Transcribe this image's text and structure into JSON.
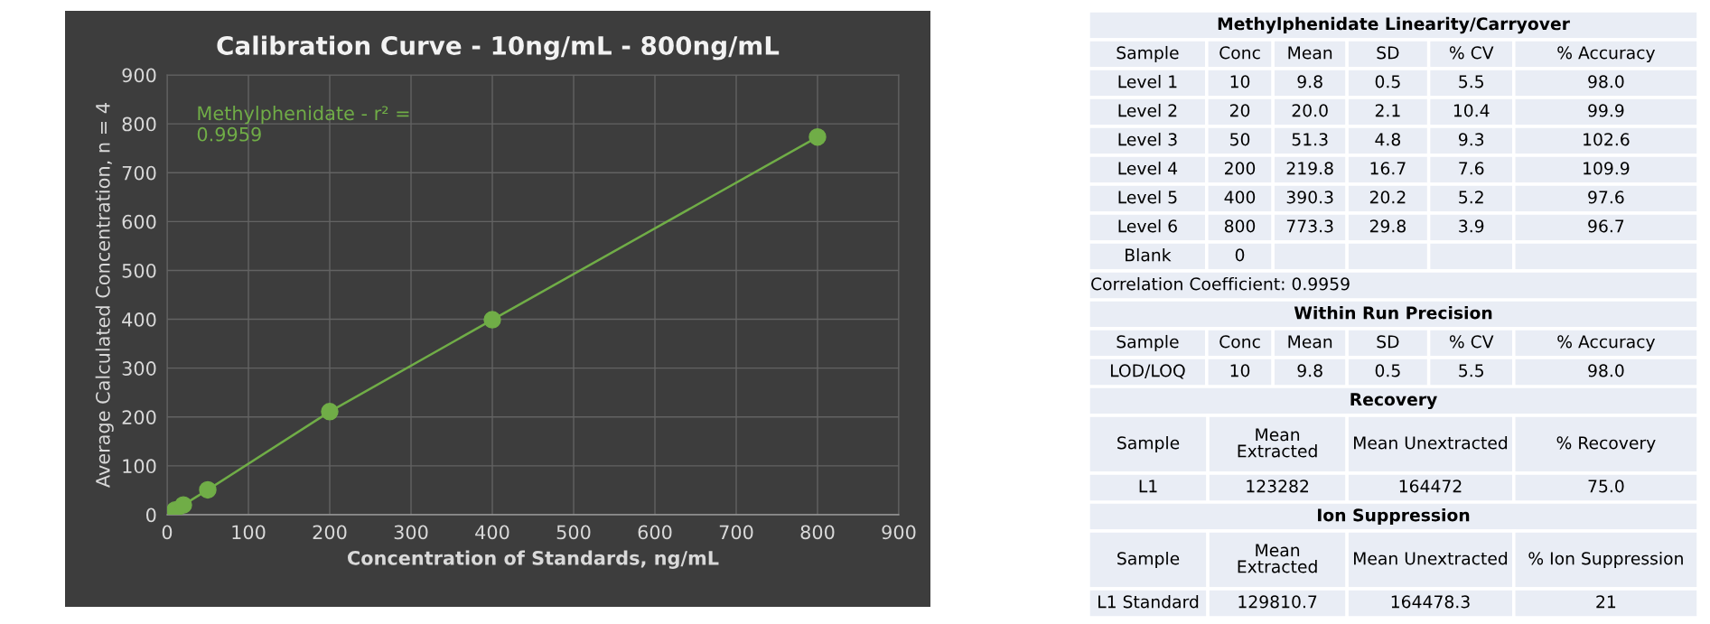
{
  "chart_data": [
    {
      "type": "line",
      "title": "Calibration Curve - 10ng/mL - 800ng/mL",
      "xlabel": "Concentration of Standards, ng/mL",
      "ylabel": "Average Calculated Concentration, n = 4",
      "x": [
        10,
        20,
        50,
        200,
        400,
        800
      ],
      "series": [
        {
          "color": "#70ad47",
          "values": [
            9.8,
            20,
            51,
            211,
            399,
            773
          ]
        }
      ],
      "marker": "circle",
      "line_style": "solid",
      "grid": true,
      "xlim": [
        0,
        900
      ],
      "xticks": [
        0,
        100,
        200,
        300,
        400,
        500,
        600,
        700,
        800,
        900
      ],
      "ylim": [
        0,
        900
      ],
      "yticks": [
        0,
        100,
        200,
        300,
        400,
        500,
        600,
        700,
        800,
        900
      ],
      "annotations": [
        "Methylphenidate - r² =\n0.9959"
      ]
    },
    {
      "type": "other",
      "title": "Methylphenidate Linearity/Carryover",
      "categories": [
        "Sample",
        "Conc",
        "Mean",
        "SD",
        "% CV",
        "% Accuracy"
      ],
      "cell_labels": [
        [
          "Level 1",
          "10",
          "9.8",
          "0.5",
          "5.5",
          "98.0"
        ],
        [
          "Level 2",
          "20",
          "20.0",
          "2.1",
          "10.4",
          "99.9"
        ],
        [
          "Level 3",
          "50",
          "51.3",
          "4.8",
          "9.3",
          "102.6"
        ],
        [
          "Level 4",
          "200",
          "219.8",
          "16.7",
          "7.6",
          "109.9"
        ],
        [
          "Level 5",
          "400",
          "390.3",
          "20.2",
          "5.2",
          "97.6"
        ],
        [
          "Level 6",
          "800",
          "773.3",
          "29.8",
          "3.9",
          "96.7"
        ],
        [
          "Blank",
          "0",
          null,
          null,
          null,
          null
        ]
      ],
      "annotations": [
        "Correlation Coefficient: 0.9959"
      ]
    },
    {
      "type": "other",
      "title": "Within Run Precision",
      "categories": [
        "Sample",
        "Conc",
        "Mean",
        "SD",
        "% CV",
        "% Accuracy"
      ],
      "cell_labels": [
        [
          "LOD/LOQ",
          "10",
          "9.8",
          "0.5",
          "5.5",
          "98.0"
        ]
      ]
    },
    {
      "type": "other",
      "title": "Recovery",
      "categories": [
        "Sample",
        "Mean\nExtracted",
        "Mean Unextracted",
        "% Recovery"
      ],
      "cell_labels": [
        [
          "L1",
          "123282",
          "164472",
          "75.0"
        ]
      ]
    },
    {
      "type": "other",
      "title": "Ion Suppression",
      "categories": [
        "Sample",
        "Mean\nExtracted",
        "Mean Unextracted",
        "% Ion Suppression"
      ],
      "cell_labels": [
        [
          "L1 Standard",
          "129810.7",
          "164478.3",
          "21"
        ]
      ]
    }
  ]
}
